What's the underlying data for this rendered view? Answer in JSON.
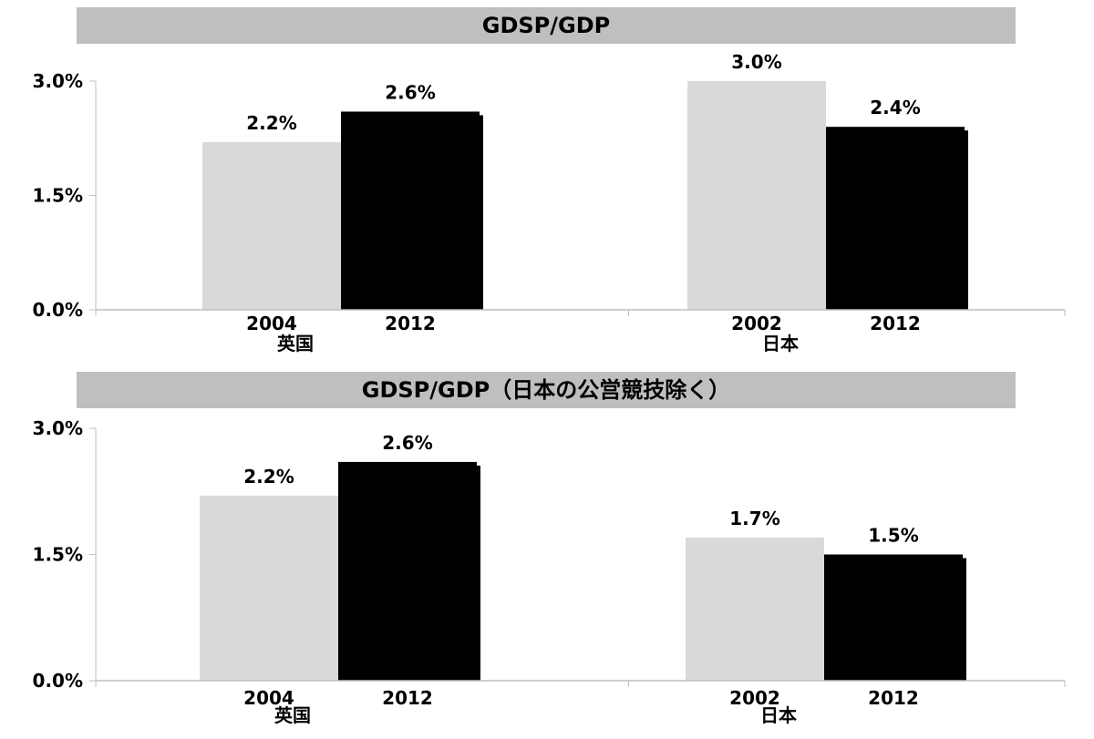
{
  "colors": {
    "banner": "#bfbfbf",
    "series_a": "#d9d9d9",
    "series_b": "#000000",
    "axis": "#bfbfbf"
  },
  "chart_data": [
    {
      "type": "bar",
      "title": "GDSP/GDP",
      "ylim": [
        0,
        3.0
      ],
      "yticks": [
        "0.0%",
        "1.5%",
        "3.0%"
      ],
      "ytick_values": [
        0,
        1.5,
        3.0
      ],
      "groups": [
        {
          "name": "英国",
          "bars": [
            {
              "year": "2004",
              "value": 2.2,
              "label": "2.2%",
              "series": "a"
            },
            {
              "year": "2012",
              "value": 2.6,
              "label": "2.6%",
              "series": "b"
            }
          ]
        },
        {
          "name": "日本",
          "bars": [
            {
              "year": "2002",
              "value": 3.0,
              "label": "3.0%",
              "series": "a"
            },
            {
              "year": "2012",
              "value": 2.4,
              "label": "2.4%",
              "series": "b"
            }
          ]
        }
      ]
    },
    {
      "type": "bar",
      "title": "GDSP/GDP（日本の公営競技除く）",
      "ylim": [
        0,
        3.0
      ],
      "yticks": [
        "0.0%",
        "1.5%",
        "3.0%"
      ],
      "ytick_values": [
        0,
        1.5,
        3.0
      ],
      "groups": [
        {
          "name": "英国",
          "bars": [
            {
              "year": "2004",
              "value": 2.2,
              "label": "2.2%",
              "series": "a"
            },
            {
              "year": "2012",
              "value": 2.6,
              "label": "2.6%",
              "series": "b"
            }
          ]
        },
        {
          "name": "日本",
          "bars": [
            {
              "year": "2002",
              "value": 1.7,
              "label": "1.7%",
              "series": "a"
            },
            {
              "year": "2012",
              "value": 1.5,
              "label": "1.5%",
              "series": "b"
            }
          ]
        }
      ]
    }
  ]
}
